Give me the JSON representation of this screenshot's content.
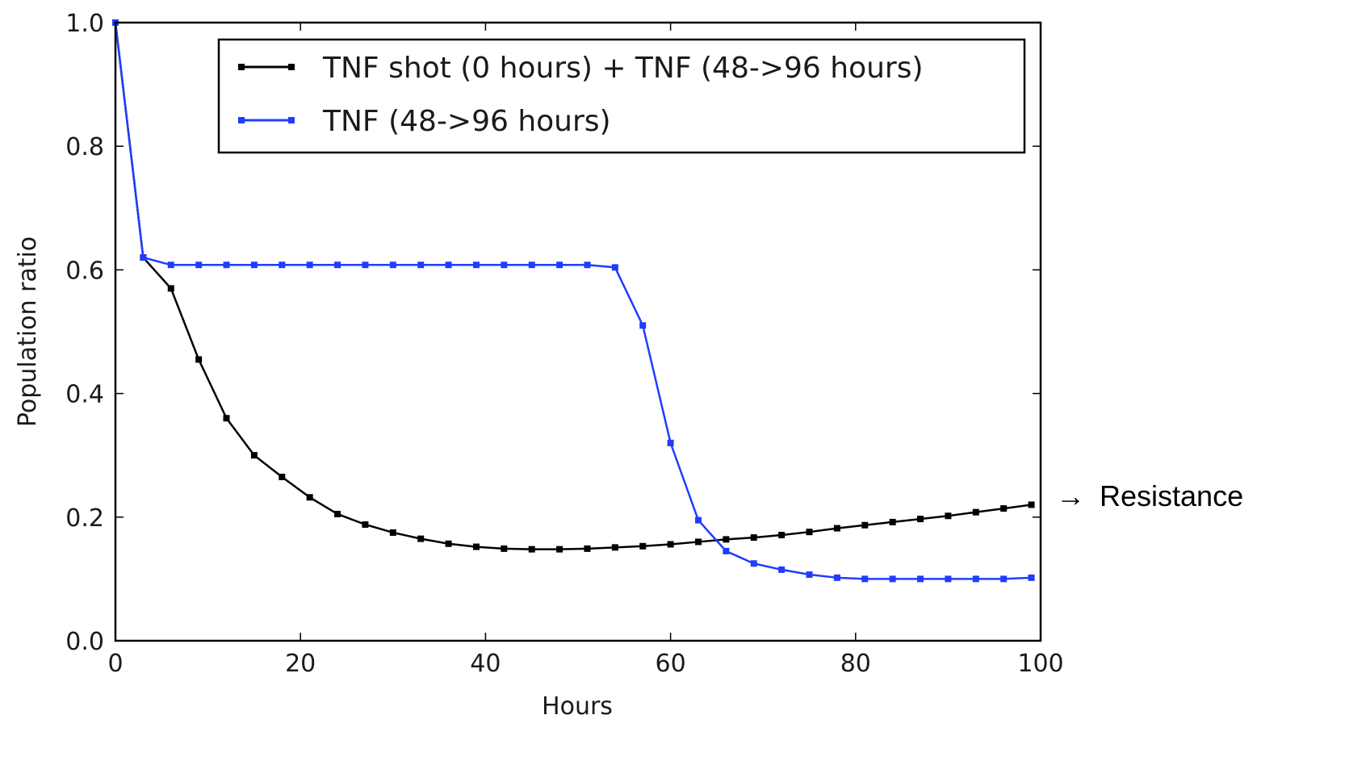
{
  "chart_data": {
    "type": "line",
    "title": "",
    "xlabel": "Hours",
    "ylabel": "Population ratio",
    "xlim": [
      0,
      100
    ],
    "ylim": [
      0.0,
      1.0
    ],
    "x_ticks": [
      "0",
      "20",
      "40",
      "60",
      "80",
      "100"
    ],
    "y_ticks": [
      "0.0",
      "0.2",
      "0.4",
      "0.6",
      "0.8",
      "1.0"
    ],
    "grid": false,
    "legend_position": "top-right",
    "x": [
      0,
      3,
      6,
      9,
      12,
      15,
      18,
      21,
      24,
      27,
      30,
      33,
      36,
      39,
      42,
      45,
      48,
      51,
      54,
      57,
      60,
      63,
      66,
      69,
      72,
      75,
      78,
      81,
      84,
      87,
      90,
      93,
      96,
      99
    ],
    "series": [
      {
        "name": "TNF shot (0 hours) + TNF (48->96 hours)",
        "color": "#000000",
        "values": [
          1.0,
          0.62,
          0.57,
          0.455,
          0.36,
          0.3,
          0.265,
          0.232,
          0.205,
          0.188,
          0.175,
          0.165,
          0.157,
          0.152,
          0.149,
          0.148,
          0.148,
          0.149,
          0.151,
          0.153,
          0.156,
          0.16,
          0.164,
          0.167,
          0.171,
          0.176,
          0.182,
          0.187,
          0.192,
          0.197,
          0.202,
          0.208,
          0.214,
          0.22
        ]
      },
      {
        "name": "TNF (48->96 hours)",
        "color": "#1f3dff",
        "values": [
          1.0,
          0.62,
          0.608,
          0.608,
          0.608,
          0.608,
          0.608,
          0.608,
          0.608,
          0.608,
          0.608,
          0.608,
          0.608,
          0.608,
          0.608,
          0.608,
          0.608,
          0.608,
          0.604,
          0.51,
          0.32,
          0.195,
          0.145,
          0.125,
          0.115,
          0.107,
          0.102,
          0.1,
          0.1,
          0.1,
          0.1,
          0.1,
          0.1,
          0.102
        ]
      }
    ],
    "annotation": {
      "arrow": "→",
      "text": "Resistance",
      "at_x": 100,
      "at_y": 0.22
    }
  }
}
